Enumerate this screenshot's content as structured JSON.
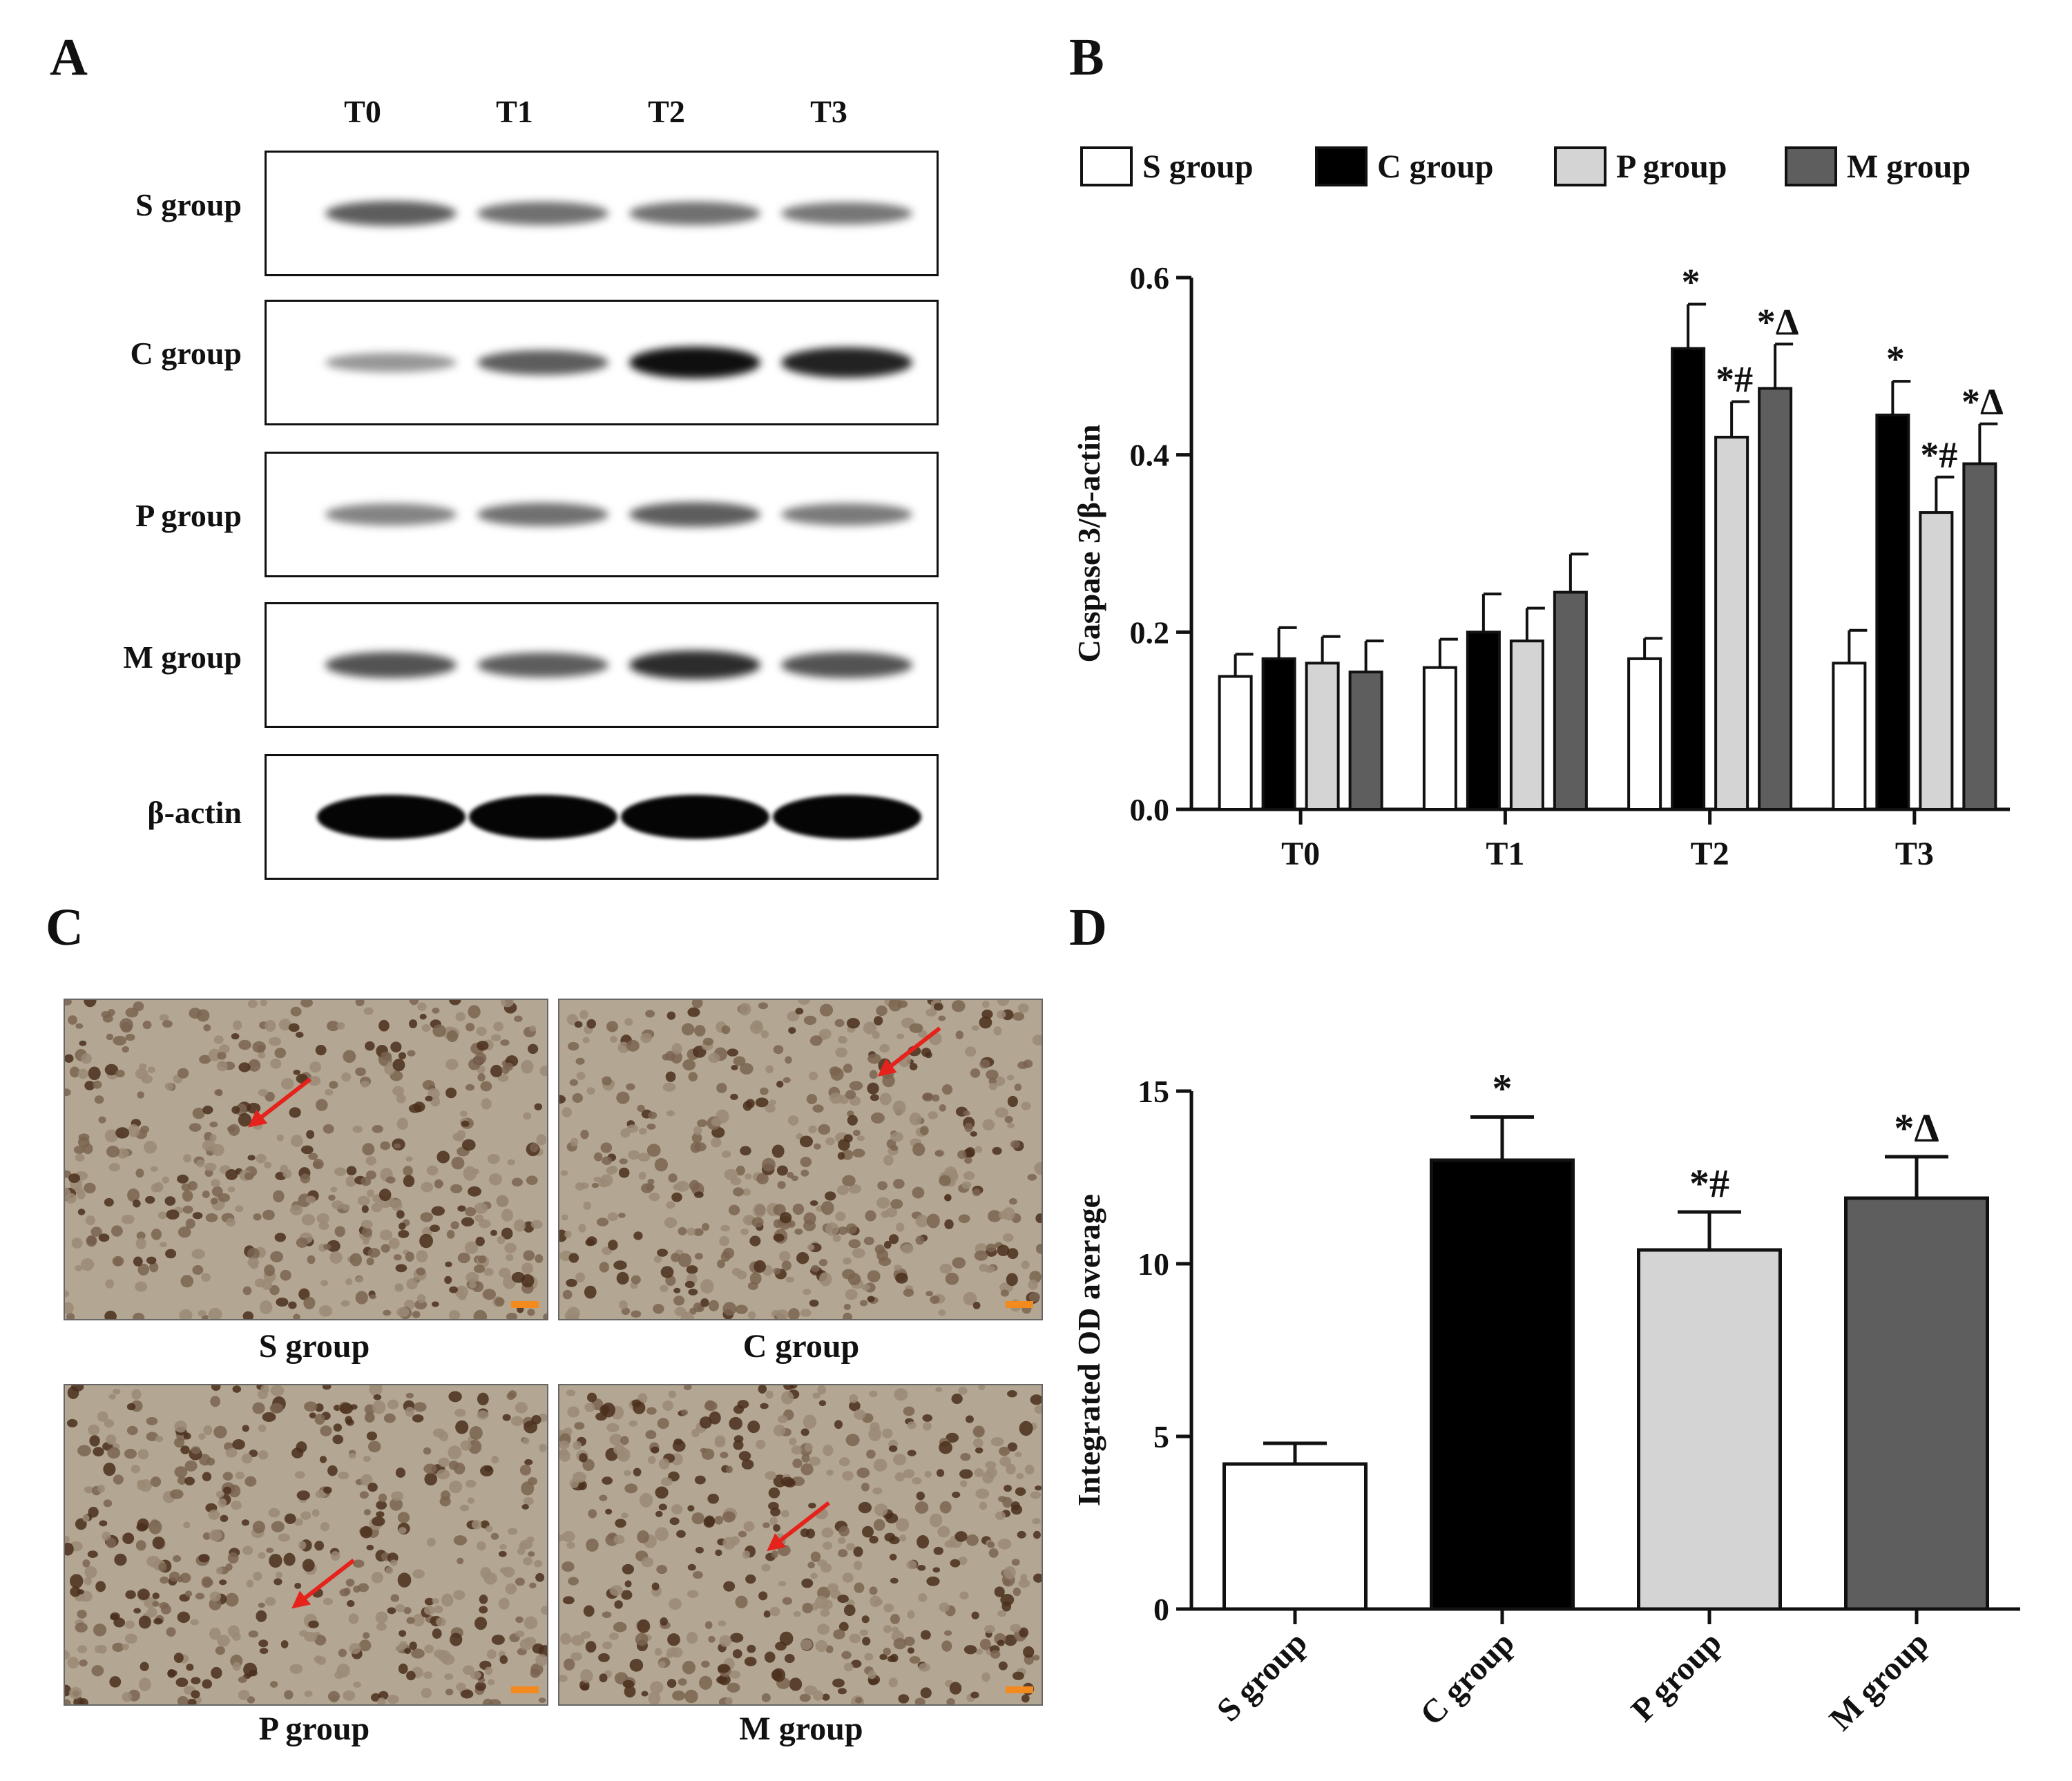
{
  "panels": {
    "a": "A",
    "b": "B",
    "c": "C",
    "d": "D"
  },
  "western_blot": {
    "lanes": [
      "T0",
      "T1",
      "T2",
      "T3"
    ],
    "rows": [
      {
        "label": "S group",
        "band_intensity": [
          0.55,
          0.45,
          0.45,
          0.42
        ]
      },
      {
        "label": "C group",
        "band_intensity": [
          0.25,
          0.55,
          0.95,
          0.85
        ]
      },
      {
        "label": "P group",
        "band_intensity": [
          0.35,
          0.45,
          0.55,
          0.4
        ]
      },
      {
        "label": "M group",
        "band_intensity": [
          0.6,
          0.55,
          0.8,
          0.6
        ]
      },
      {
        "label": "β-actin",
        "band_intensity": [
          1.0,
          1.0,
          1.0,
          1.0
        ]
      }
    ]
  },
  "micrographs": [
    {
      "label": "S group"
    },
    {
      "label": "C group"
    },
    {
      "label": "P group"
    },
    {
      "label": "M group"
    }
  ],
  "chart_data": [
    {
      "type": "bar",
      "panel": "B",
      "categories": [
        "T0",
        "T1",
        "T2",
        "T3"
      ],
      "ylabel": "Caspase 3/β-actin",
      "xlabel": "",
      "ylim": [
        0,
        0.6
      ],
      "yticks": [
        "0.0",
        "0.2",
        "0.4",
        "0.6"
      ],
      "legend_position": "top",
      "series": [
        {
          "name": "S group",
          "color": "#ffffff",
          "values": [
            0.15,
            0.16,
            0.17,
            0.165
          ],
          "errors": [
            0.025,
            0.032,
            0.023,
            0.037
          ],
          "annotations": [
            "",
            "",
            "",
            ""
          ]
        },
        {
          "name": "C group",
          "color": "#000000",
          "values": [
            0.17,
            0.2,
            0.52,
            0.445
          ],
          "errors": [
            0.035,
            0.043,
            0.05,
            0.038
          ],
          "annotations": [
            "",
            "",
            "*",
            "*"
          ]
        },
        {
          "name": "P group",
          "color": "#d4d4d4",
          "values": [
            0.165,
            0.19,
            0.42,
            0.335
          ],
          "errors": [
            0.03,
            0.037,
            0.04,
            0.04
          ],
          "annotations": [
            "",
            "",
            "*#",
            "*#"
          ]
        },
        {
          "name": "M group",
          "color": "#5e5e5e",
          "values": [
            0.155,
            0.245,
            0.475,
            0.39
          ],
          "errors": [
            0.035,
            0.043,
            0.05,
            0.045
          ],
          "annotations": [
            "",
            "",
            "*Δ",
            "*Δ"
          ]
        }
      ]
    },
    {
      "type": "bar",
      "panel": "D",
      "categories": [
        "S group",
        "C group",
        "P group",
        "M group"
      ],
      "ylabel": "Integrated OD average",
      "xlabel": "",
      "ylim": [
        0,
        15
      ],
      "yticks": [
        "0",
        "5",
        "10",
        "15"
      ],
      "values": [
        4.2,
        13.0,
        10.4,
        11.9
      ],
      "errors": [
        0.6,
        1.25,
        1.1,
        1.2
      ],
      "colors": [
        "#ffffff",
        "#000000",
        "#d4d4d4",
        "#5e5e5e"
      ],
      "annotations": [
        "",
        "*",
        "*#",
        "*Δ"
      ]
    }
  ]
}
